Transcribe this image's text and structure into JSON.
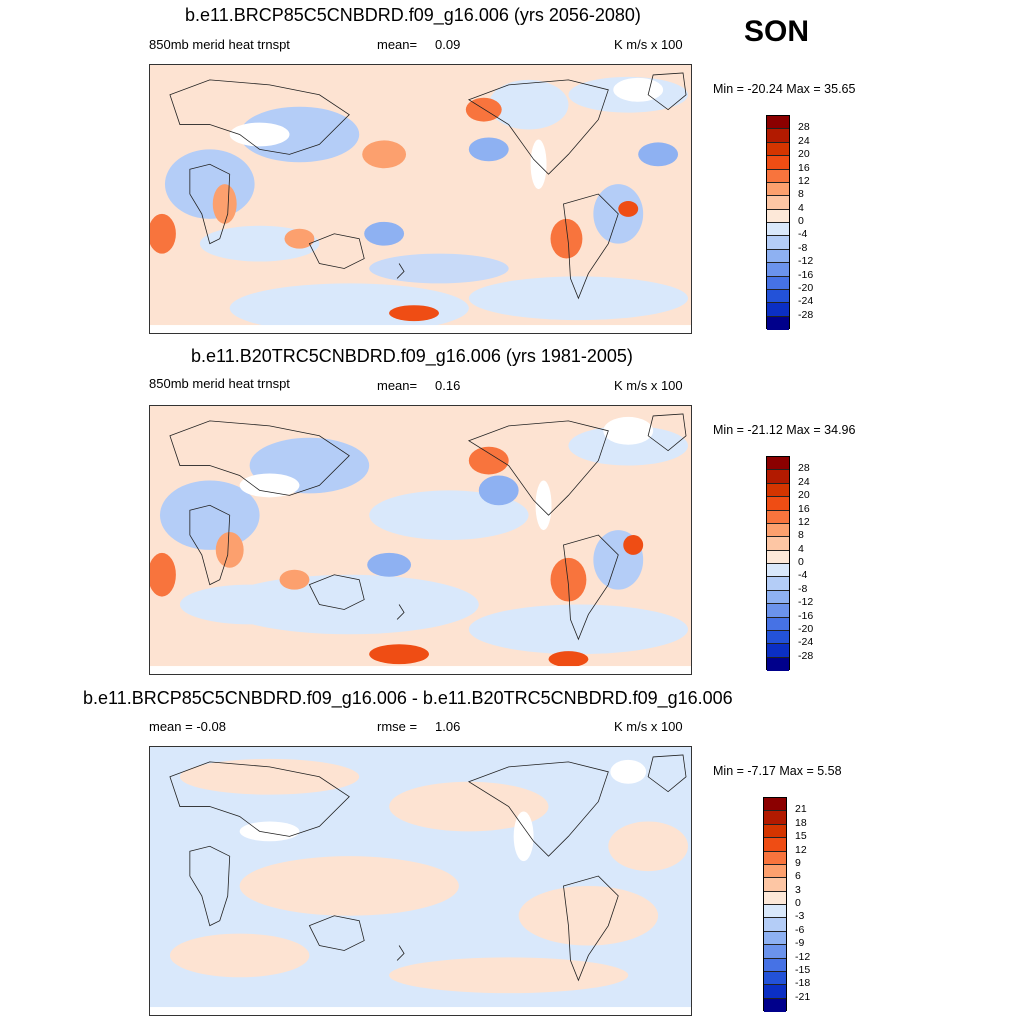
{
  "season": "SON",
  "units": "K m/s x 100",
  "panels": [
    {
      "title": "b.e11.BRCP85C5CNBDRD.f09_g16.006 (yrs 2056-2080)",
      "variable": "850mb merid heat trnspt",
      "mean_label": "mean=",
      "mean_value": "0.09",
      "minmax": "Min = -20.24 Max =  35.65"
    },
    {
      "title": "b.e11.B20TRC5CNBDRD.f09_g16.006 (yrs 1981-2005)",
      "variable": "850mb merid heat trnspt",
      "mean_label": "mean=",
      "mean_value": "0.16",
      "minmax": "Min = -21.12 Max =  34.96"
    },
    {
      "title": "b.e11.BRCP85C5CNBDRD.f09_g16.006 - b.e11.B20TRC5CNBDRD.f09_g16.006",
      "mean_text": "mean =  -0.08",
      "rmse_label": "rmse =",
      "rmse_value": "1.06",
      "minmax": "Min =  -7.17 Max =   5.58"
    }
  ],
  "colorbars": {
    "main_levels": [
      "28",
      "24",
      "20",
      "16",
      "12",
      "8",
      "4",
      "0",
      "-4",
      "-8",
      "-12",
      "-16",
      "-20",
      "-24",
      "-28"
    ],
    "diff_levels": [
      "21",
      "18",
      "15",
      "12",
      "9",
      "6",
      "3",
      "0",
      "-3",
      "-6",
      "-9",
      "-12",
      "-15",
      "-18",
      "-21"
    ],
    "colors": [
      "#8b0000",
      "#b21a00",
      "#d43500",
      "#ef4d14",
      "#f8743d",
      "#fca06e",
      "#fdc6a4",
      "#fde8d8",
      "#ffffff",
      "#d9e8fb",
      "#b4cdf7",
      "#8eb1f2",
      "#6b93ec",
      "#4672e5",
      "#2352d8",
      "#0b2fc4",
      "#00008b"
    ]
  }
}
